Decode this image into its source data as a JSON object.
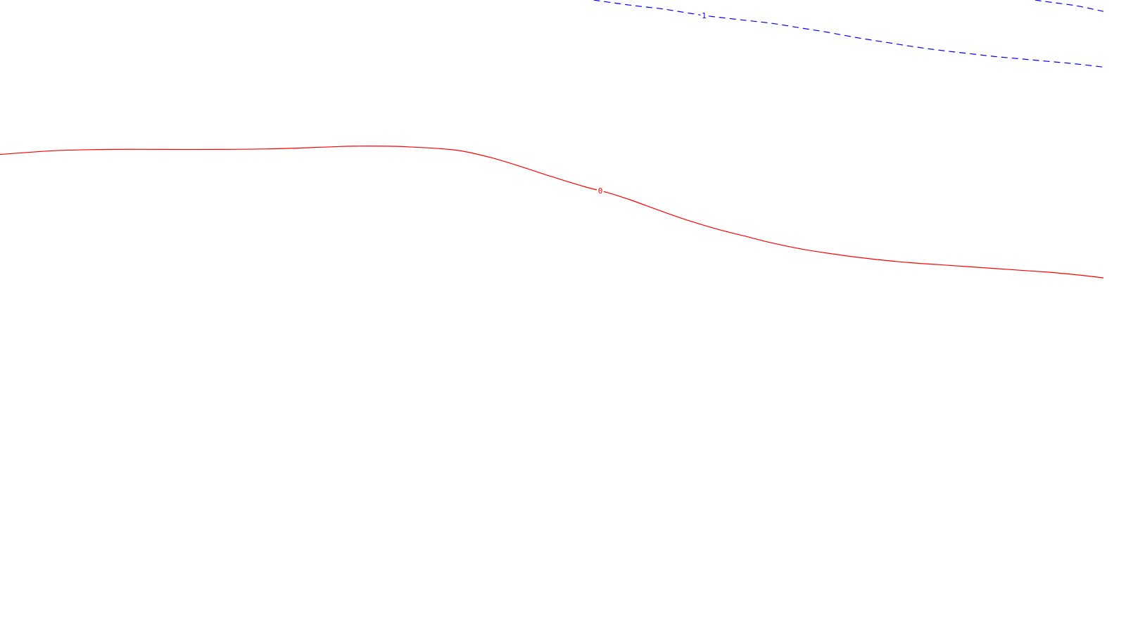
{
  "chart_data": {
    "type": "line",
    "title": "",
    "xlabel": "",
    "ylabel": "",
    "grid": false,
    "xlim": [
      0,
      100
    ],
    "ylim": [
      0,
      100
    ],
    "series": [
      {
        "name": "contour-0",
        "label": "0",
        "color": "#ff0000",
        "dashed": false,
        "label_at_x": 54.4,
        "x": [
          0,
          5,
          10,
          15,
          20,
          25,
          30,
          32,
          35,
          37,
          40,
          42,
          44.5,
          47,
          50,
          53,
          55,
          57,
          60,
          62.5,
          65,
          67.5,
          70,
          72.5,
          75,
          77.5,
          80,
          82.5,
          85,
          87.5,
          90,
          92.5,
          95,
          97.5,
          100
        ],
        "y": [
          75.6,
          76.2,
          76.4,
          76.4,
          76.4,
          76.5,
          76.8,
          76.9,
          76.9,
          76.8,
          76.5,
          76.1,
          75.1,
          73.8,
          72.1,
          70.5,
          69.6,
          68.5,
          66.6,
          65.1,
          63.8,
          62.7,
          61.6,
          60.7,
          60,
          59.4,
          58.9,
          58.5,
          58.2,
          57.9,
          57.6,
          57.3,
          57,
          56.6,
          56.1
        ]
      },
      {
        "name": "contour-1",
        "label": "1",
        "color": "#0000ff",
        "dashed": true,
        "label_at_x": 63.8,
        "x": [
          53.8,
          55,
          57.5,
          60,
          62.5,
          64,
          65,
          67.5,
          70,
          72.5,
          75,
          77.5,
          80,
          82.5,
          85,
          87.5,
          90,
          92.5,
          95,
          97.5,
          100
        ],
        "y": [
          100,
          99.7,
          99.1,
          98.6,
          97.9,
          97.5,
          97.3,
          96.8,
          96.3,
          95.6,
          94.9,
          94.1,
          93.4,
          92.7,
          92.1,
          91.6,
          91.1,
          90.7,
          90.3,
          89.9,
          89.4
        ]
      },
      {
        "name": "contour-1-upper-segment",
        "label": "",
        "color": "#0000ff",
        "dashed": true,
        "x": [
          93.8,
          95,
          97.5,
          100
        ],
        "y": [
          100,
          99.7,
          99.1,
          98.2
        ]
      }
    ]
  }
}
